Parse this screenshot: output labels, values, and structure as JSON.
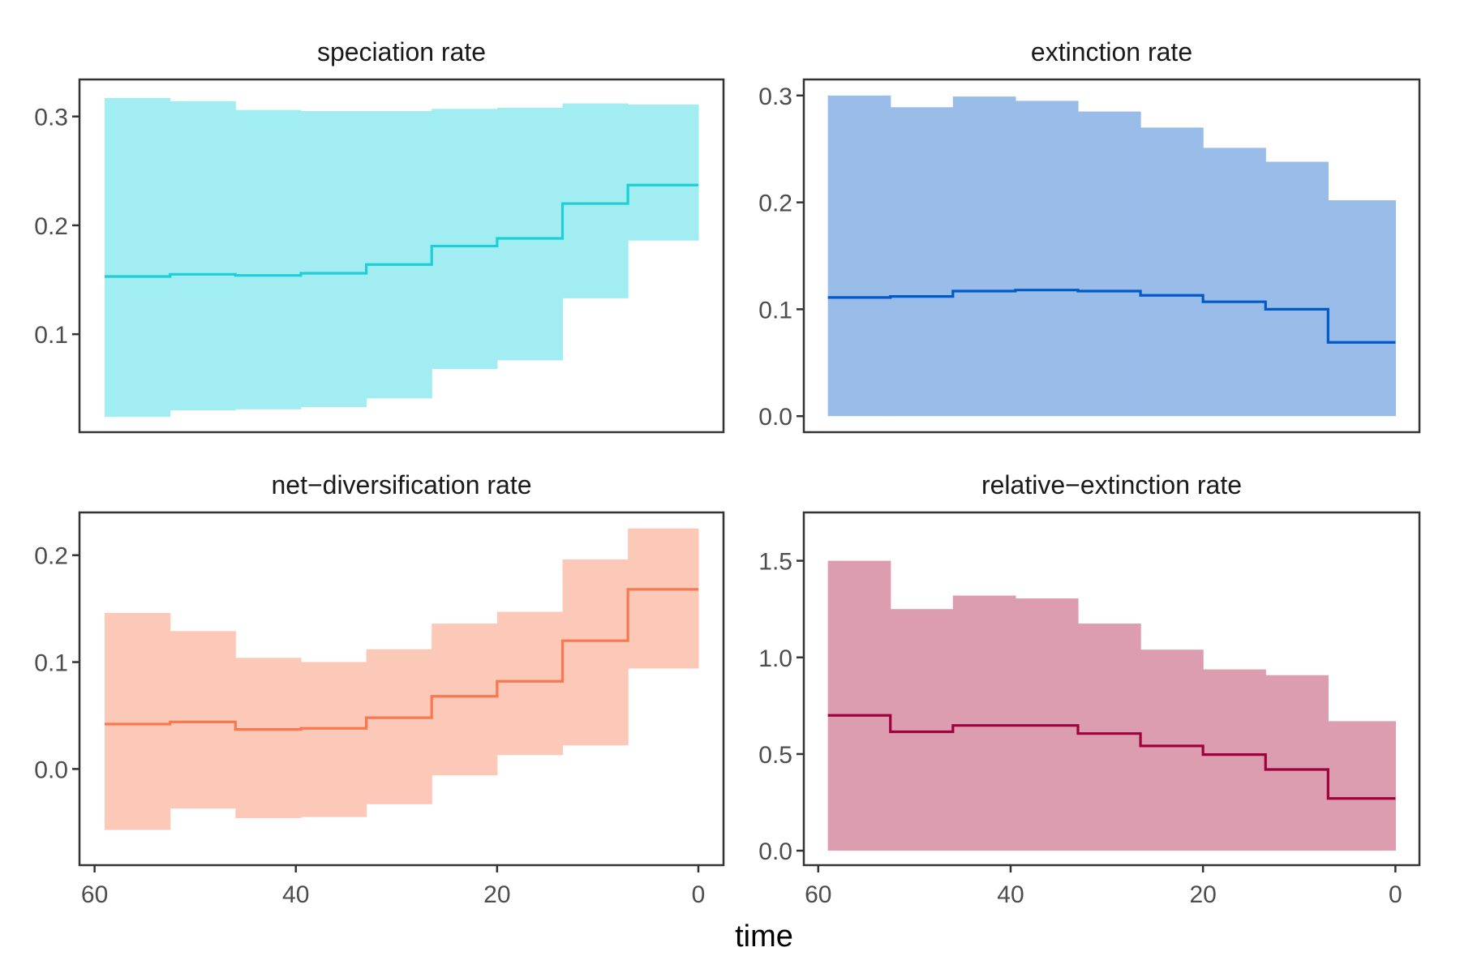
{
  "figure": {
    "xlabel": "time"
  },
  "chart_data": [
    {
      "type": "area",
      "title": "speciation rate",
      "color": "#1ECFD6",
      "band_color": "#A2EDF1",
      "x_breaks": [
        59,
        52.5,
        46,
        39.5,
        33,
        26.5,
        20,
        13.5,
        7,
        0
      ],
      "median": [
        0.153,
        0.155,
        0.154,
        0.156,
        0.164,
        0.181,
        0.188,
        0.22,
        0.237
      ],
      "lower": [
        0.024,
        0.03,
        0.031,
        0.033,
        0.041,
        0.068,
        0.076,
        0.133,
        0.186
      ],
      "upper": [
        0.317,
        0.314,
        0.306,
        0.305,
        0.305,
        0.307,
        0.308,
        0.312,
        0.311
      ],
      "xlim": [
        61.5,
        -2.5
      ],
      "ylim": [
        0.01,
        0.334
      ],
      "yticks": [
        0.1,
        0.2,
        0.3
      ],
      "ytick_labels": [
        "0.1",
        "0.2",
        "0.3"
      ],
      "xticks": [],
      "xtick_labels": []
    },
    {
      "type": "area",
      "title": "extinction rate",
      "color": "#005AC8",
      "band_color": "#99BCE9",
      "x_breaks": [
        59,
        52.5,
        46,
        39.5,
        33,
        26.5,
        20,
        13.5,
        7,
        0
      ],
      "median": [
        0.111,
        0.112,
        0.117,
        0.118,
        0.117,
        0.113,
        0.107,
        0.1,
        0.069
      ],
      "lower": [
        0.0,
        0.0,
        0.0,
        0.0,
        0.0,
        0.0,
        0.0,
        0.0,
        0.0
      ],
      "upper": [
        0.3,
        0.289,
        0.299,
        0.295,
        0.285,
        0.27,
        0.251,
        0.238,
        0.202
      ],
      "xlim": [
        61.5,
        -2.5
      ],
      "ylim": [
        -0.015,
        0.315
      ],
      "yticks": [
        0.0,
        0.1,
        0.2,
        0.3
      ],
      "ytick_labels": [
        "0.0",
        "0.1",
        "0.2",
        "0.3"
      ],
      "xticks": [],
      "xtick_labels": []
    },
    {
      "type": "area",
      "title": "net−diversification rate",
      "color": "#FA7850",
      "band_color": "#FCC8B8",
      "x_breaks": [
        59,
        52.5,
        46,
        39.5,
        33,
        26.5,
        20,
        13.5,
        7,
        0
      ],
      "median": [
        0.042,
        0.044,
        0.037,
        0.038,
        0.048,
        0.068,
        0.082,
        0.12,
        0.168
      ],
      "lower": [
        -0.057,
        -0.037,
        -0.046,
        -0.045,
        -0.033,
        -0.006,
        0.013,
        0.022,
        0.094
      ],
      "upper": [
        0.146,
        0.129,
        0.104,
        0.1,
        0.112,
        0.136,
        0.147,
        0.196,
        0.225
      ],
      "xlim": [
        61.5,
        -2.5
      ],
      "ylim": [
        -0.09,
        0.24
      ],
      "yticks": [
        0.0,
        0.1,
        0.2
      ],
      "ytick_labels": [
        "0.0",
        "0.1",
        "0.2"
      ],
      "xticks": [
        60,
        40,
        20,
        0
      ],
      "xtick_labels": [
        "60",
        "40",
        "20",
        "0"
      ]
    },
    {
      "type": "area",
      "title": "relative−extinction rate",
      "color": "#A0003C",
      "band_color": "#DC9DB0",
      "x_breaks": [
        59,
        52.5,
        46,
        39.5,
        33,
        26.5,
        20,
        13.5,
        7,
        0
      ],
      "median": [
        0.7,
        0.615,
        0.648,
        0.648,
        0.606,
        0.542,
        0.497,
        0.42,
        0.27
      ],
      "lower": [
        0.0,
        0.0,
        0.0,
        0.0,
        0.0,
        0.0,
        0.0,
        0.0,
        0.0
      ],
      "upper": [
        1.5,
        1.25,
        1.32,
        1.305,
        1.175,
        1.04,
        0.938,
        0.908,
        0.67
      ],
      "xlim": [
        61.5,
        -2.5
      ],
      "ylim": [
        -0.075,
        1.75
      ],
      "yticks": [
        0.0,
        0.5,
        1.0,
        1.5
      ],
      "ytick_labels": [
        "0.0",
        "0.5",
        "1.0",
        "1.5"
      ],
      "xticks": [
        60,
        40,
        20,
        0
      ],
      "xtick_labels": [
        "60",
        "40",
        "20",
        "0"
      ]
    }
  ]
}
